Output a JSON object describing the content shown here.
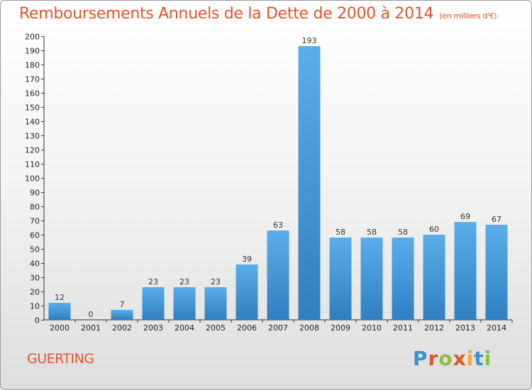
{
  "header": {
    "title": "Remboursements Annuels de la Dette de 2000 à 2014",
    "unit": "(en milliers d'€)"
  },
  "footer": {
    "commune": "GUERTING",
    "logo_text": "Proxiti"
  },
  "colors": {
    "bar": "#3f93d6",
    "title": "#e1542a",
    "logo": [
      "#3c8fd0",
      "#e1542a",
      "#8bbf3a",
      "#e1542a",
      "#f2a93b",
      "#3c8fd0",
      "#8bbf3a"
    ]
  },
  "chart_data": {
    "type": "bar",
    "title": "Remboursements Annuels de la Dette de 2000 à 2014",
    "xlabel": "",
    "ylabel": "",
    "categories": [
      "2000",
      "2001",
      "2002",
      "2003",
      "2004",
      "2005",
      "2006",
      "2007",
      "2008",
      "2009",
      "2010",
      "2011",
      "2012",
      "2013",
      "2014"
    ],
    "values": [
      12,
      0,
      7,
      23,
      23,
      23,
      39,
      63,
      193,
      58,
      58,
      58,
      60,
      69,
      67
    ],
    "ylim": [
      0,
      200
    ],
    "yticks": [
      0,
      10,
      20,
      30,
      40,
      50,
      60,
      70,
      80,
      90,
      100,
      110,
      120,
      130,
      140,
      150,
      160,
      170,
      180,
      190,
      200
    ],
    "grid": false,
    "data_labels": true
  }
}
